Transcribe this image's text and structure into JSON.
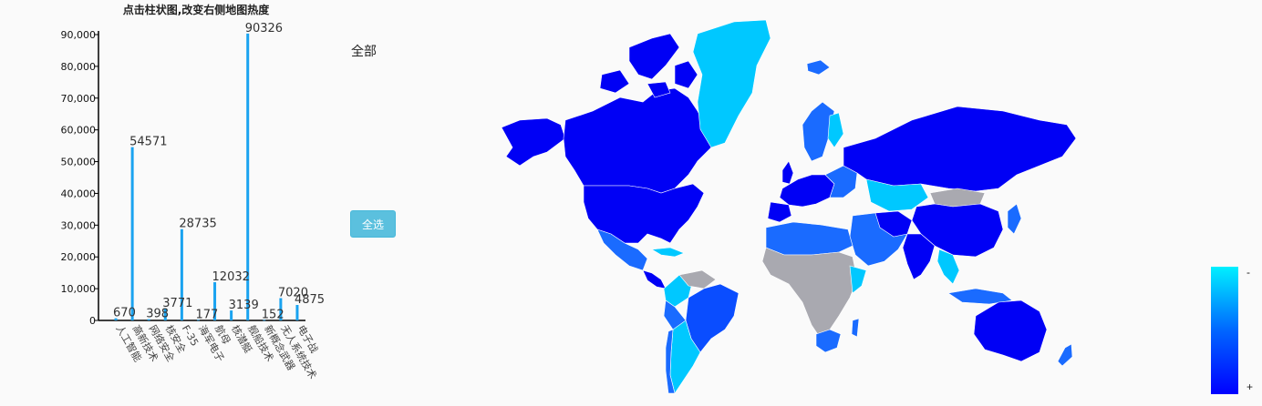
{
  "chart_data": {
    "type": "bar",
    "title": "点击柱状图,改变右侧地图热度",
    "categories": [
      "人工智能",
      "高新技术",
      "网络安全",
      "核安全",
      "F-35",
      "海军电子",
      "航母",
      "核潜艇",
      "舰船技术",
      "新概念武器",
      "无人系统技术",
      "电子战"
    ],
    "values": [
      670,
      54571,
      398,
      3771,
      28735,
      177,
      12032,
      3139,
      90326,
      152,
      7020,
      4875
    ],
    "value_labels": [
      "670",
      "54571",
      "398",
      "3771",
      "28735",
      "177",
      "12032",
      "3139",
      "90326",
      "152",
      "7020",
      "4875"
    ],
    "yticks": [
      "0",
      "10,000",
      "20,000",
      "30,000",
      "40,000",
      "50,000",
      "60,000",
      "70,000",
      "80,000",
      "90,000"
    ],
    "ylim": [
      0,
      90000
    ],
    "bar_color": "#1aa3f0",
    "xlabel": "",
    "ylabel": "",
    "grid": false
  },
  "filter": {
    "label": "全部"
  },
  "button": {
    "select_all": "全选"
  },
  "legend": {
    "top_label": "-",
    "bottom_label": "+",
    "max_color": "#00f0ff",
    "min_color": "#0000ff"
  },
  "map": {
    "colors": {
      "high": "#0000f5",
      "mid": "#1a6bff",
      "light": "#00c8ff",
      "cyan": "#00e0f5",
      "nodata": "#a9a9b0"
    }
  }
}
